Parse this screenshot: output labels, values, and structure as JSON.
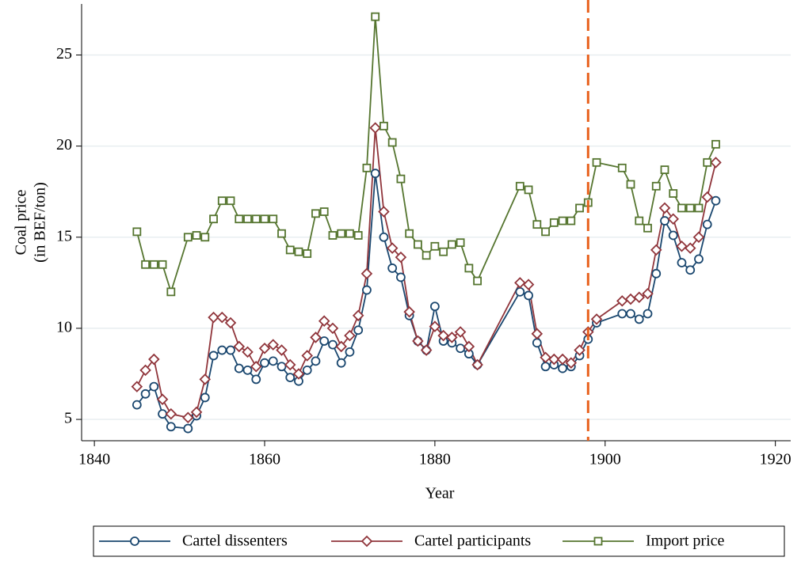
{
  "chart_data": {
    "type": "line",
    "xlabel": "Year",
    "ylabel": [
      "Coal price",
      "(in BEF/ton)"
    ],
    "x": [
      1845,
      1846,
      1847,
      1848,
      1849,
      1851,
      1852,
      1853,
      1854,
      1855,
      1856,
      1857,
      1858,
      1859,
      1860,
      1861,
      1862,
      1863,
      1864,
      1865,
      1866,
      1867,
      1868,
      1869,
      1870,
      1871,
      1872,
      1873,
      1874,
      1875,
      1876,
      1877,
      1878,
      1879,
      1880,
      1881,
      1882,
      1883,
      1884,
      1885,
      1890,
      1891,
      1892,
      1893,
      1894,
      1895,
      1896,
      1897,
      1898,
      1899,
      1902,
      1903,
      1904,
      1905,
      1906,
      1907,
      1908,
      1909,
      1910,
      1911,
      1912,
      1913
    ],
    "series": [
      {
        "name": "Cartel dissenters",
        "color": "#1a476f",
        "marker": "circle",
        "values": [
          5.8,
          6.4,
          6.8,
          5.3,
          4.6,
          4.5,
          5.2,
          6.2,
          8.5,
          8.8,
          8.8,
          7.8,
          7.7,
          7.2,
          8.1,
          8.2,
          7.9,
          7.3,
          7.1,
          7.7,
          8.2,
          9.3,
          9.1,
          8.1,
          8.7,
          9.9,
          12.1,
          18.5,
          15.0,
          13.3,
          12.8,
          10.7,
          9.3,
          8.8,
          11.2,
          9.3,
          9.2,
          8.9,
          8.6,
          8.0,
          12.0,
          11.8,
          9.2,
          7.9,
          8.0,
          7.8,
          7.9,
          8.5,
          9.4,
          10.3,
          10.8,
          10.8,
          10.5,
          10.8,
          13.0,
          15.9,
          15.1,
          13.6,
          13.2,
          13.8,
          15.7,
          17.0
        ]
      },
      {
        "name": "Cartel participants",
        "color": "#90353b",
        "marker": "diamond",
        "values": [
          6.8,
          7.7,
          8.3,
          6.1,
          5.3,
          5.1,
          5.4,
          7.2,
          10.6,
          10.6,
          10.3,
          9.0,
          8.7,
          7.9,
          8.9,
          9.1,
          8.8,
          8.0,
          7.5,
          8.5,
          9.5,
          10.4,
          10.0,
          9.0,
          9.6,
          10.7,
          13.0,
          21.0,
          16.4,
          14.4,
          13.9,
          10.9,
          9.3,
          8.8,
          10.1,
          9.6,
          9.5,
          9.8,
          9.0,
          8.0,
          12.5,
          12.4,
          9.7,
          8.4,
          8.3,
          8.3,
          8.1,
          8.8,
          9.8,
          10.5,
          11.5,
          11.6,
          11.7,
          11.9,
          14.3,
          16.6,
          16.0,
          14.5,
          14.4,
          15.0,
          17.2,
          19.1
        ]
      },
      {
        "name": "Import price",
        "color": "#55752f",
        "marker": "square",
        "values": [
          15.3,
          13.5,
          13.5,
          13.5,
          12.0,
          15.0,
          15.1,
          15.0,
          16.0,
          17.0,
          17.0,
          16.0,
          16.0,
          16.0,
          16.0,
          16.0,
          15.2,
          14.3,
          14.2,
          14.1,
          16.3,
          16.4,
          15.1,
          15.2,
          15.2,
          15.1,
          18.8,
          27.1,
          21.1,
          20.2,
          18.2,
          15.2,
          14.6,
          14.0,
          14.5,
          14.2,
          14.6,
          14.7,
          13.3,
          12.6,
          17.8,
          17.6,
          15.7,
          15.3,
          15.8,
          15.9,
          15.9,
          16.6,
          16.9,
          19.1,
          18.8,
          17.9,
          15.9,
          15.5,
          17.8,
          18.7,
          17.4,
          16.6,
          16.6,
          16.6,
          19.1,
          20.1
        ]
      }
    ],
    "reference_line": {
      "x": 1898,
      "color": "#e8601c"
    },
    "xlim": [
      1838.5,
      1921.8
    ],
    "xticks": [
      1840,
      1860,
      1880,
      1900,
      1920
    ],
    "ylim": [
      3.83,
      27.8
    ],
    "yticks": [
      5,
      10,
      15,
      20,
      25
    ],
    "grid": true
  }
}
